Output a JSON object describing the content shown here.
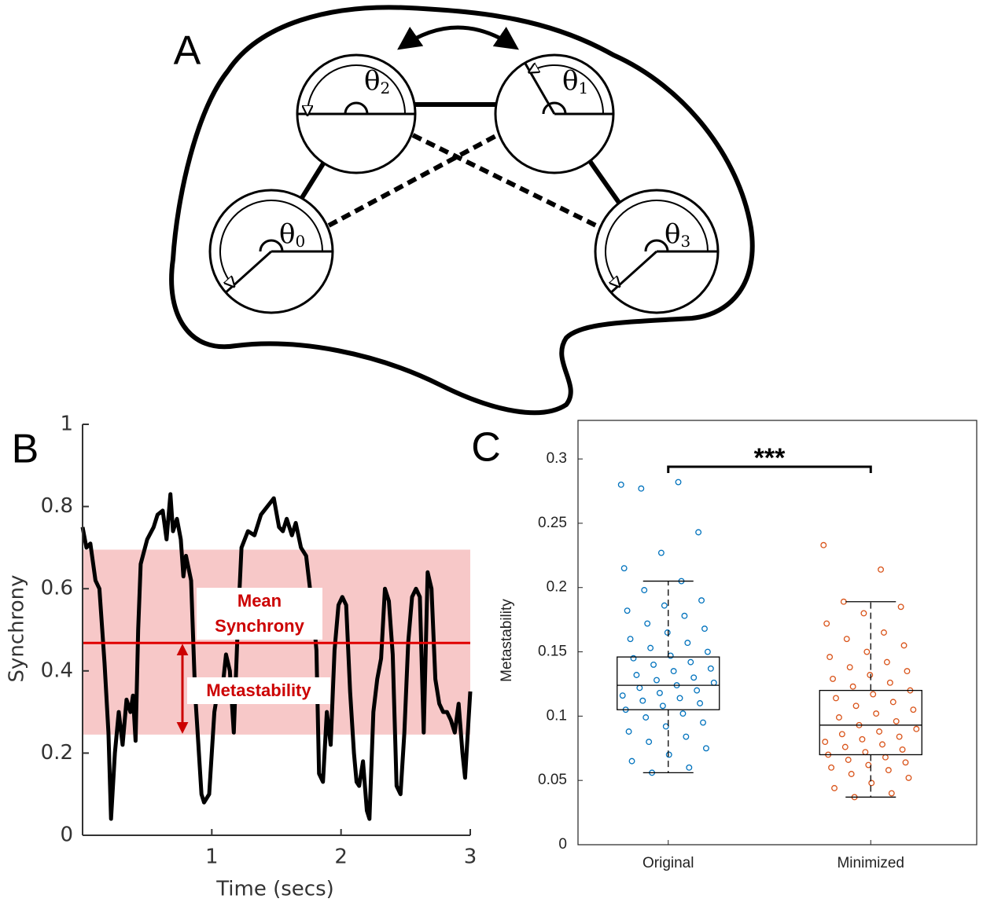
{
  "panel_labels": [
    "A",
    "B",
    "C"
  ],
  "diagram": {
    "nodes": [
      {
        "symbol": "θ",
        "index": "2"
      },
      {
        "symbol": "θ",
        "index": "1"
      },
      {
        "symbol": "θ",
        "index": "0"
      },
      {
        "symbol": "θ",
        "index": "3"
      }
    ]
  },
  "chart_data": [
    {
      "type": "line",
      "xlabel": "Time (secs)",
      "ylabel": "Synchrony",
      "xlim": [
        0,
        3
      ],
      "ylim": [
        0,
        1
      ],
      "xticks": [
        1,
        2,
        3
      ],
      "yticks": [
        0,
        0.2,
        0.4,
        0.6,
        0.8,
        1
      ],
      "x": [
        0,
        0.03,
        0.06,
        0.1,
        0.13,
        0.17,
        0.2,
        0.22,
        0.25,
        0.28,
        0.31,
        0.34,
        0.37,
        0.39,
        0.41,
        0.43,
        0.45,
        0.5,
        0.55,
        0.58,
        0.62,
        0.65,
        0.68,
        0.7,
        0.73,
        0.76,
        0.78,
        0.8,
        0.84,
        0.87,
        0.89,
        0.92,
        0.94,
        0.98,
        1.02,
        1.05,
        1.08,
        1.11,
        1.14,
        1.17,
        1.2,
        1.23,
        1.28,
        1.33,
        1.38,
        1.43,
        1.48,
        1.52,
        1.55,
        1.58,
        1.62,
        1.65,
        1.69,
        1.73,
        1.76,
        1.79,
        1.81,
        1.83,
        1.86,
        1.89,
        1.92,
        1.95,
        1.98,
        2.01,
        2.04,
        2.07,
        2.1,
        2.12,
        2.14,
        2.17,
        2.2,
        2.22,
        2.25,
        2.28,
        2.31,
        2.34,
        2.37,
        2.4,
        2.43,
        2.46,
        2.49,
        2.52,
        2.55,
        2.58,
        2.61,
        2.64,
        2.67,
        2.7,
        2.73,
        2.76,
        2.79,
        2.82,
        2.85,
        2.88,
        2.91,
        2.94,
        2.96,
        3
      ],
      "series": [
        {
          "color": "#000000",
          "values": [
            0.75,
            0.7,
            0.71,
            0.62,
            0.6,
            0.42,
            0.25,
            0.04,
            0.2,
            0.3,
            0.22,
            0.33,
            0.3,
            0.34,
            0.23,
            0.5,
            0.66,
            0.72,
            0.75,
            0.78,
            0.79,
            0.72,
            0.83,
            0.74,
            0.77,
            0.72,
            0.63,
            0.68,
            0.62,
            0.35,
            0.25,
            0.1,
            0.08,
            0.1,
            0.3,
            0.36,
            0.35,
            0.44,
            0.4,
            0.25,
            0.5,
            0.7,
            0.74,
            0.73,
            0.78,
            0.8,
            0.82,
            0.75,
            0.74,
            0.77,
            0.73,
            0.76,
            0.7,
            0.68,
            0.6,
            0.52,
            0.45,
            0.15,
            0.13,
            0.3,
            0.22,
            0.45,
            0.56,
            0.58,
            0.56,
            0.35,
            0.2,
            0.13,
            0.12,
            0.18,
            0.06,
            0.04,
            0.3,
            0.38,
            0.43,
            0.6,
            0.57,
            0.44,
            0.12,
            0.1,
            0.25,
            0.47,
            0.58,
            0.6,
            0.58,
            0.25,
            0.64,
            0.6,
            0.38,
            0.32,
            0.3,
            0.3,
            0.28,
            0.25,
            0.32,
            0.2,
            0.14,
            0.35
          ]
        }
      ],
      "band": [
        0.245,
        0.695
      ],
      "band_color": "#f4b6b6",
      "mean": 0.468,
      "mean_color": "#e00000",
      "mean_label": [
        "Mean",
        "Synchrony"
      ],
      "metastability_label": "Metastability"
    },
    {
      "type": "box",
      "ylabel": "Metastability",
      "categories": [
        "Original",
        "Minimized"
      ],
      "ylim": [
        0,
        0.33
      ],
      "yticks": [
        0,
        0.05,
        0.1,
        0.15,
        0.2,
        0.25,
        0.3
      ],
      "significance": "***",
      "series": [
        {
          "color": "#0072bd",
          "box": {
            "whislo": 0.056,
            "q1": 0.105,
            "med": 0.124,
            "q3": 0.146,
            "whishi": 0.205
          },
          "values": [
            0.28,
            0.282,
            0.277,
            0.243,
            0.227,
            0.215,
            0.205,
            0.198,
            0.19,
            0.186,
            0.182,
            0.178,
            0.172,
            0.168,
            0.165,
            0.16,
            0.157,
            0.153,
            0.15,
            0.147,
            0.145,
            0.142,
            0.14,
            0.137,
            0.135,
            0.132,
            0.13,
            0.128,
            0.126,
            0.124,
            0.122,
            0.12,
            0.118,
            0.116,
            0.114,
            0.112,
            0.11,
            0.108,
            0.105,
            0.102,
            0.099,
            0.095,
            0.092,
            0.088,
            0.084,
            0.08,
            0.075,
            0.07,
            0.065,
            0.06,
            0.056
          ]
        },
        {
          "color": "#d95319",
          "box": {
            "whislo": 0.037,
            "q1": 0.07,
            "med": 0.093,
            "q3": 0.12,
            "whishi": 0.189
          },
          "values": [
            0.233,
            0.214,
            0.189,
            0.185,
            0.18,
            0.172,
            0.165,
            0.16,
            0.155,
            0.15,
            0.146,
            0.142,
            0.138,
            0.135,
            0.132,
            0.129,
            0.126,
            0.123,
            0.12,
            0.117,
            0.114,
            0.111,
            0.108,
            0.105,
            0.102,
            0.099,
            0.096,
            0.093,
            0.09,
            0.088,
            0.086,
            0.084,
            0.082,
            0.08,
            0.078,
            0.076,
            0.074,
            0.072,
            0.07,
            0.068,
            0.066,
            0.064,
            0.062,
            0.06,
            0.058,
            0.055,
            0.052,
            0.048,
            0.044,
            0.04,
            0.037
          ]
        }
      ]
    }
  ]
}
